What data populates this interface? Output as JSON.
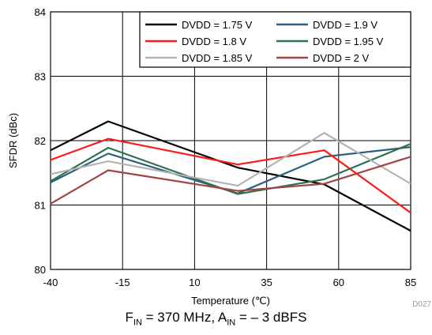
{
  "chart_data": {
    "type": "line",
    "xlabel": "Temperature (℃)",
    "ylabel": "SFDR (dBc)",
    "xlim": [
      -40,
      85
    ],
    "ylim": [
      80,
      84
    ],
    "xticks": [
      -40,
      -15,
      10,
      35,
      60,
      85
    ],
    "yticks": [
      80,
      81,
      82,
      83,
      84
    ],
    "grid": true,
    "legend_position": "top-right",
    "x": [
      -40,
      -20,
      25,
      55,
      85
    ],
    "series": [
      {
        "name": "DVDD = 1.75 V",
        "color": "#000000",
        "values": [
          81.85,
          82.3,
          81.58,
          81.32,
          80.6
        ]
      },
      {
        "name": "DVDD = 1.9 V",
        "color": "#2f5f7f",
        "values": [
          81.35,
          81.8,
          81.18,
          81.75,
          81.9
        ]
      },
      {
        "name": "DVDD = 1.8 V",
        "color": "#ff1a1a",
        "values": [
          81.7,
          82.03,
          81.63,
          81.85,
          80.88
        ]
      },
      {
        "name": "DVDD = 1.95 V",
        "color": "#2e7050",
        "values": [
          81.37,
          81.89,
          81.17,
          81.4,
          81.95
        ]
      },
      {
        "name": "DVDD = 1.85 V",
        "color": "#b3b3b3",
        "values": [
          81.48,
          81.68,
          81.3,
          82.12,
          81.33
        ]
      },
      {
        "name": "DVDD = 2 V",
        "color": "#a04545",
        "values": [
          81.02,
          81.54,
          81.22,
          81.33,
          81.75
        ]
      }
    ],
    "code_label": "D027"
  },
  "caption": {
    "f_symbol": "F",
    "f_sub": "IN",
    "f_value": " = 370 MHz, ",
    "a_symbol": "A",
    "a_sub": "IN",
    "a_value": " = – 3 dBFS"
  }
}
